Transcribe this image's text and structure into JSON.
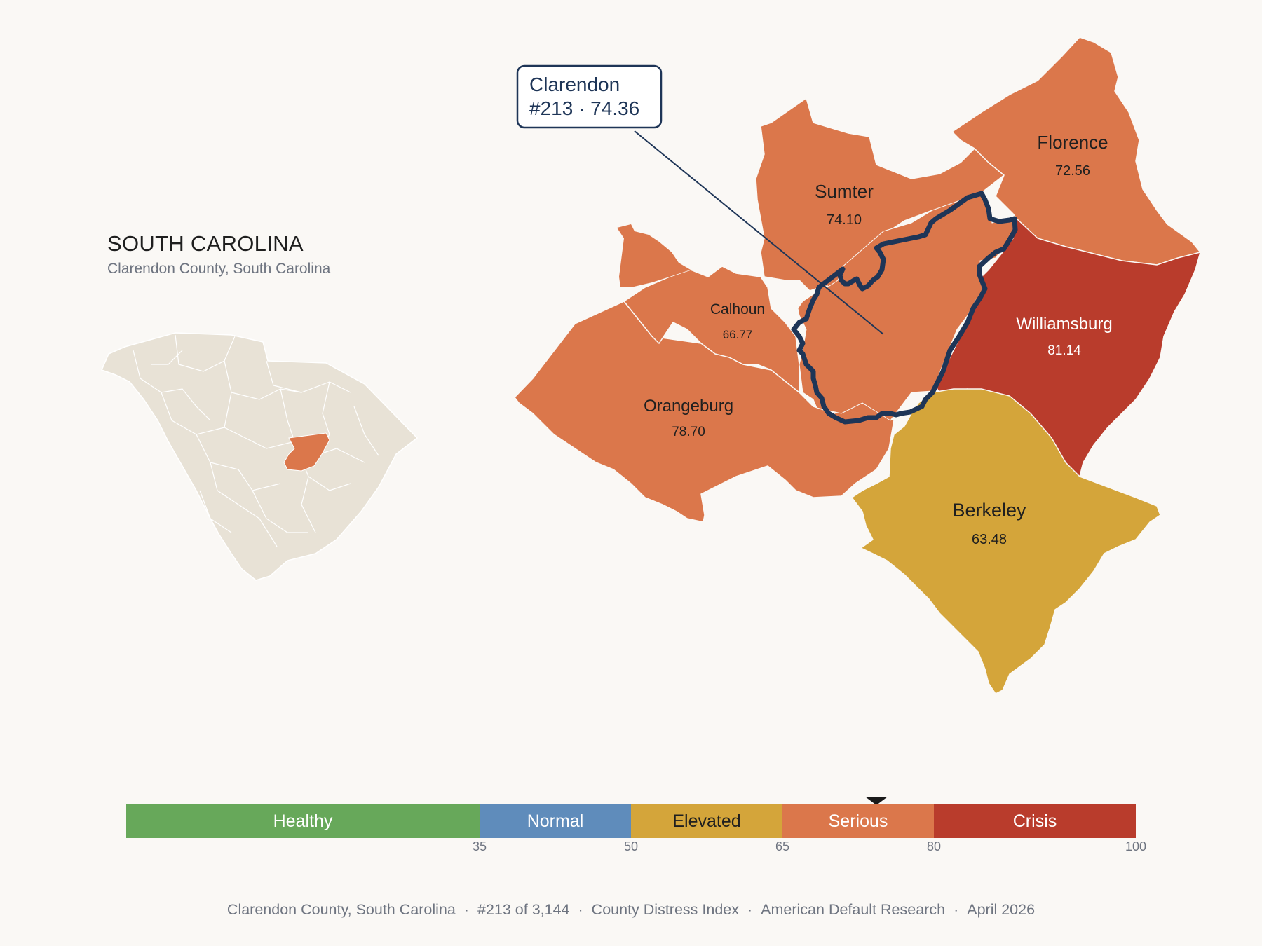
{
  "header": {
    "state_title": "SOUTH CAROLINA",
    "subtitle": "Clarendon County, South Carolina"
  },
  "callout": {
    "county": "Clarendon",
    "detail": "#213 · 74.36"
  },
  "counties": [
    {
      "name": "Sumter",
      "value": "74.10",
      "color": "#db774b"
    },
    {
      "name": "Florence",
      "value": "72.56",
      "color": "#db774b"
    },
    {
      "name": "Calhoun",
      "value": "66.77",
      "color": "#db774b"
    },
    {
      "name": "Williamsburg",
      "value": "81.14",
      "color": "#b93c2c"
    },
    {
      "name": "Orangeburg",
      "value": "78.70",
      "color": "#db774b"
    },
    {
      "name": "Berkeley",
      "value": "63.48",
      "color": "#d4a53a"
    }
  ],
  "colors": {
    "focus_outline": "#1e3557",
    "inset_fill": "#e8e2d6",
    "inset_highlight": "#db774b",
    "serious": "#db774b",
    "crisis": "#b93c2c",
    "elevated": "#d4a53a"
  },
  "legend": {
    "bands": [
      {
        "label": "Healthy",
        "color": "#67a85a",
        "from": 0,
        "to": 35
      },
      {
        "label": "Normal",
        "color": "#5f8cbb",
        "from": 35,
        "to": 50
      },
      {
        "label": "Elevated",
        "color": "#d4a53a",
        "from": 50,
        "to": 65
      },
      {
        "label": "Serious",
        "color": "#db774b",
        "from": 65,
        "to": 80
      },
      {
        "label": "Crisis",
        "color": "#b93c2c",
        "from": 80,
        "to": 100
      }
    ],
    "ticks": [
      "35",
      "50",
      "65",
      "80",
      "100"
    ],
    "marker_value": 74.36
  },
  "footer": {
    "county": "Clarendon County, South Carolina",
    "rank": "#213 of 3,144",
    "index": "County Distress Index",
    "org": "American Default Research",
    "date": "April 2026"
  }
}
